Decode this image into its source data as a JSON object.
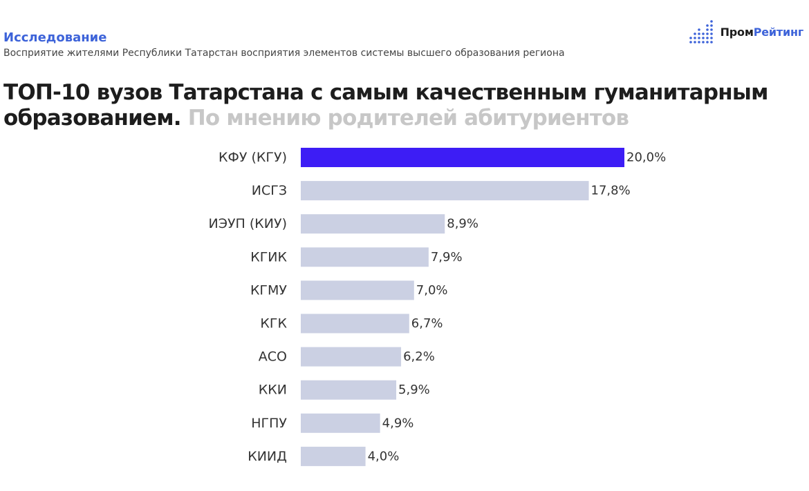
{
  "header": {
    "kicker": "Исследование",
    "subtitle": "Восприятие жителями Республики Татарстан восприятия элементов системы высшего образования региона",
    "title_main": "ТОП-10 вузов Татарстана с самым качественным гуманитарным образованием.",
    "title_secondary": "По мнению родителей абитуриентов"
  },
  "logo": {
    "part1": "Пром",
    "part2": "Рейтинг"
  },
  "colors": {
    "highlight_bar": "#3d1df5",
    "bar": "#cbd0e3",
    "accent": "#3d63d9",
    "text_dark": "#1d1d1d",
    "text_secondary_title": "#c7c7c7"
  },
  "chart_data": {
    "type": "bar",
    "orientation": "horizontal",
    "categories": [
      "КФУ (КГУ)",
      "ИСГЗ",
      "ИЭУП (КИУ)",
      "КГИК",
      "КГМУ",
      "КГК",
      "АСО",
      "ККИ",
      "НГПУ",
      "КИИД"
    ],
    "values": [
      20.0,
      17.8,
      8.9,
      7.9,
      7.0,
      6.7,
      6.2,
      5.9,
      4.9,
      4.0
    ],
    "value_labels": [
      "20,0%",
      "17,8%",
      "8,9%",
      "7,9%",
      "7,0%",
      "6,7%",
      "6,2%",
      "5,9%",
      "4,9%",
      "4,0%"
    ],
    "highlight_index": 0,
    "grid": false,
    "legend": "none"
  }
}
